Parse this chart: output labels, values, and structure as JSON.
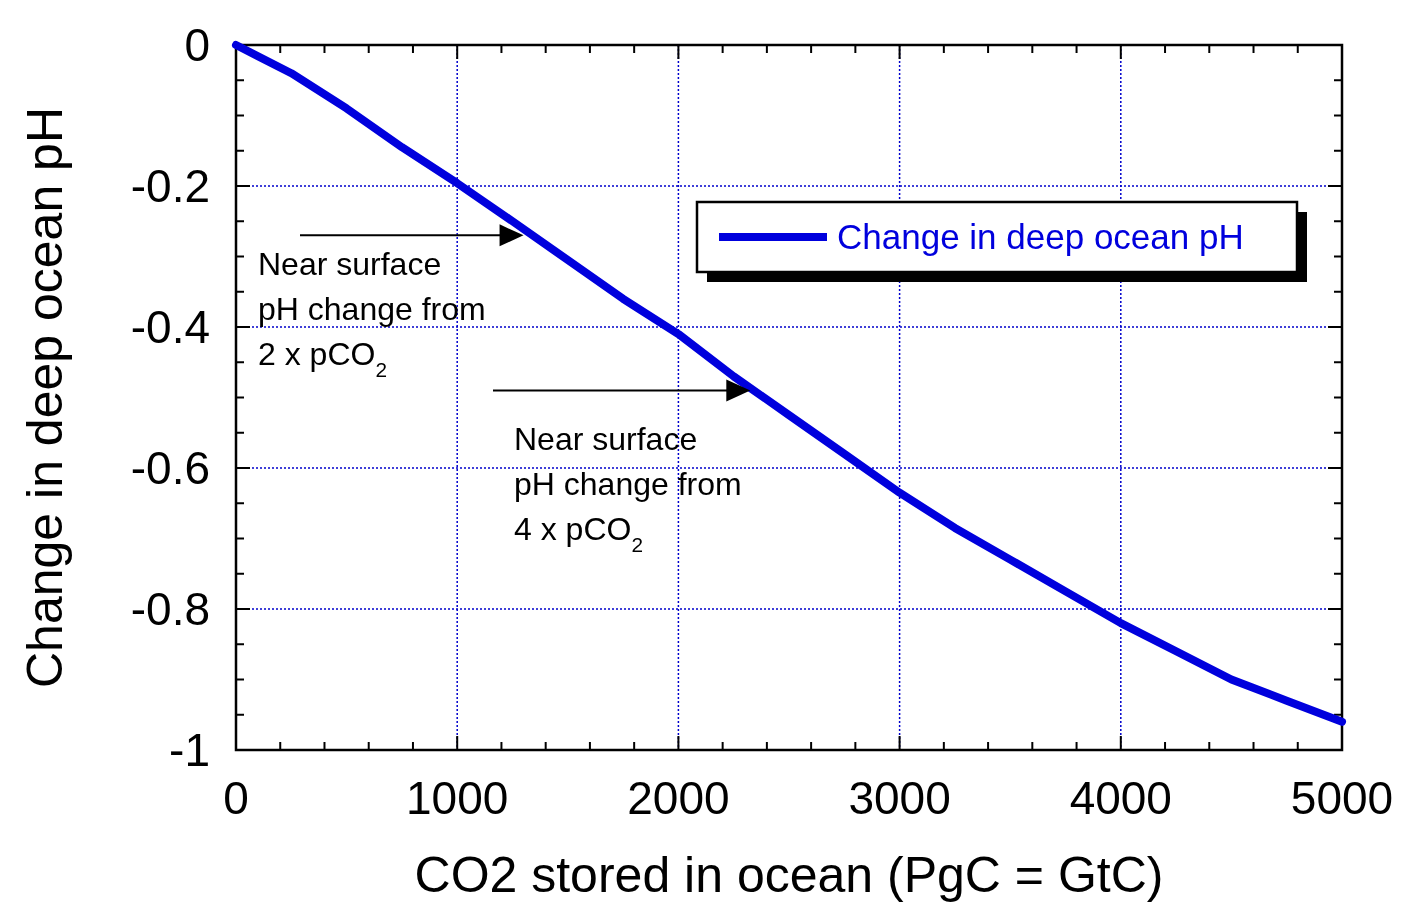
{
  "chart_data": {
    "type": "line",
    "xlabel": "CO2 stored in ocean (PgC = GtC)",
    "ylabel": "Change in deep ocean pH",
    "x": [
      0,
      250,
      500,
      750,
      1000,
      1250,
      1500,
      1750,
      2000,
      2250,
      2500,
      2750,
      3000,
      3250,
      3500,
      3750,
      4000,
      4250,
      4500,
      4750,
      5000
    ],
    "series": [
      {
        "name": "Change in deep ocean pH",
        "color": "#0000dd",
        "values": [
          0,
          -0.04,
          -0.09,
          -0.145,
          -0.196,
          -0.25,
          -0.305,
          -0.36,
          -0.41,
          -0.47,
          -0.525,
          -0.58,
          -0.635,
          -0.685,
          -0.73,
          -0.775,
          -0.82,
          -0.86,
          -0.9,
          -0.93,
          -0.96
        ]
      }
    ],
    "xlim": [
      0,
      5000
    ],
    "xticks": [
      0,
      {
        "value": 200,
        "label": null
      },
      {
        "value": 400,
        "label": null
      },
      {
        "value": 600,
        "label": null
      },
      {
        "value": 800,
        "label": null
      },
      1000,
      {
        "value": 1200,
        "label": null
      },
      {
        "value": 1400,
        "label": null
      },
      {
        "value": 1600,
        "label": null
      },
      {
        "value": 1800,
        "label": null
      },
      2000,
      {
        "value": 2200,
        "label": null
      },
      {
        "value": 2400,
        "label": null
      },
      {
        "value": 2600,
        "label": null
      },
      {
        "value": 2800,
        "label": null
      },
      3000,
      {
        "value": 3200,
        "label": null
      },
      {
        "value": 3400,
        "label": null
      },
      {
        "value": 3600,
        "label": null
      },
      {
        "value": 3800,
        "label": null
      },
      4000,
      {
        "value": 4200,
        "label": null
      },
      {
        "value": 4400,
        "label": null
      },
      {
        "value": 4600,
        "label": null
      },
      {
        "value": 4800,
        "label": null
      },
      5000
    ],
    "ylim": [
      -1,
      0
    ],
    "yticks": [
      -1,
      {
        "value": -0.95,
        "label": null
      },
      {
        "value": -0.9,
        "label": null
      },
      {
        "value": -0.85,
        "label": null
      },
      -0.8,
      {
        "value": -0.75,
        "label": null
      },
      {
        "value": -0.7,
        "label": null
      },
      {
        "value": -0.65,
        "label": null
      },
      -0.6,
      {
        "value": -0.55,
        "label": null
      },
      {
        "value": -0.5,
        "label": null
      },
      {
        "value": -0.45,
        "label": null
      },
      -0.4,
      {
        "value": -0.35,
        "label": null
      },
      {
        "value": -0.3,
        "label": null
      },
      {
        "value": -0.25,
        "label": null
      },
      -0.2,
      {
        "value": -0.15,
        "label": null
      },
      {
        "value": -0.1,
        "label": null
      },
      {
        "value": -0.05,
        "label": null
      },
      0
    ],
    "grid": true,
    "legend": "top right",
    "marker": "none",
    "line_style": "solid",
    "annotations": [
      {
        "text": "Near surface pH change from 2 x pCO$_{2}$",
        "x": 1300,
        "y": -0.27
      },
      {
        "text": "Near surface pH change from 4 x pCO$_{2}$",
        "x": 2325,
        "y": -0.49
      }
    ]
  }
}
